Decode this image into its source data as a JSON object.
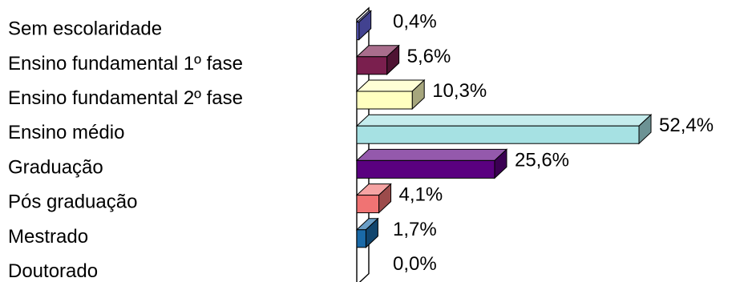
{
  "chart_data": {
    "type": "bar",
    "orientation": "horizontal",
    "style": "3d",
    "categories": [
      "Sem escolaridade",
      "Ensino fundamental 1º fase",
      "Ensino fundamental 2º fase",
      "Ensino médio",
      "Graduação",
      "Pós graduação",
      "Mestrado",
      "Doutorado"
    ],
    "values": [
      0.4,
      5.6,
      10.3,
      52.4,
      25.6,
      4.1,
      1.7,
      0.0
    ],
    "data_labels": [
      "0,4%",
      "5,6%",
      "10,3%",
      "52,4%",
      "25,6%",
      "4,1%",
      "1,7%",
      "0,0%"
    ],
    "colors": [
      "#6666dd",
      "#7a1f4e",
      "#ffffc0",
      "#a6e1e3",
      "#5a0080",
      "#f07373",
      "#1a6aa8",
      "#ffffff"
    ],
    "unit": "%",
    "xlim": [
      0,
      52.4
    ],
    "grid": false,
    "legend": "none",
    "title": "",
    "xlabel": "",
    "ylabel": ""
  }
}
